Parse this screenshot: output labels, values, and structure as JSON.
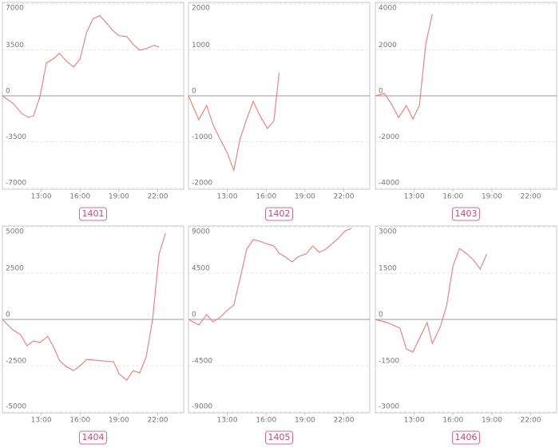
{
  "chart_data": [
    {
      "type": "line",
      "title": "1401",
      "color": "#e88585",
      "grid": true,
      "x": [
        10,
        10.85,
        11.5,
        12,
        12.4,
        12.9,
        13.4,
        14,
        14.4,
        14.9,
        15.5,
        16,
        16.5,
        17,
        17.5,
        18,
        18.5,
        19,
        19.6,
        20.1,
        20.6,
        21.1,
        21.7,
        22.1
      ],
      "values": [
        0,
        -600,
        -1340,
        -1640,
        -1520,
        -60,
        2500,
        2860,
        3230,
        2680,
        2190,
        2800,
        4810,
        5850,
        6090,
        5600,
        4990,
        4570,
        4510,
        3900,
        3470,
        3590,
        3840,
        3710
      ],
      "xlim": [
        10,
        24
      ],
      "xticks": [
        {
          "value": 13,
          "label": "13:00"
        },
        {
          "value": 16,
          "label": "16:00"
        },
        {
          "value": 19,
          "label": "19:00"
        },
        {
          "value": 22,
          "label": "22:00"
        }
      ],
      "ylim": [
        -7100,
        7100
      ],
      "yticks": [
        7000,
        3500,
        0,
        -3500,
        -7000
      ]
    },
    {
      "type": "line",
      "title": "1402",
      "color": "#e88585",
      "grid": true,
      "x": [
        10,
        10.8,
        11.4,
        11.9,
        12.4,
        13,
        13.5,
        14,
        14.5,
        15,
        15.5,
        16.1,
        16.6,
        17
      ],
      "values": [
        0,
        -520,
        -210,
        -630,
        -920,
        -1240,
        -1620,
        -920,
        -500,
        -120,
        -420,
        -710,
        -540,
        500
      ],
      "xlim": [
        10,
        24
      ],
      "xticks": [
        {
          "value": 13,
          "label": "13:00"
        },
        {
          "value": 16,
          "label": "16:00"
        },
        {
          "value": 19,
          "label": "19:00"
        },
        {
          "value": 22,
          "label": "22:00"
        }
      ],
      "ylim": [
        -2030,
        2030
      ],
      "yticks": [
        2000,
        1000,
        0,
        -1000,
        -2000
      ]
    },
    {
      "type": "line",
      "title": "1403",
      "color": "#e88585",
      "grid": true,
      "x": [
        10,
        10.7,
        11.2,
        11.8,
        12.4,
        12.9,
        13.4,
        13.9,
        14.4
      ],
      "values": [
        0,
        100,
        -310,
        -940,
        -420,
        -1010,
        -420,
        2260,
        3550
      ],
      "xlim": [
        10,
        24
      ],
      "xticks": [
        {
          "value": 13,
          "label": "13:00"
        },
        {
          "value": 16,
          "label": "16:00"
        },
        {
          "value": 19,
          "label": "19:00"
        },
        {
          "value": 22,
          "label": "22:00"
        }
      ],
      "ylim": [
        -4060,
        4060
      ],
      "yticks": [
        4000,
        2000,
        0,
        -2000,
        -4000
      ]
    },
    {
      "type": "line",
      "title": "1404",
      "color": "#e88585",
      "grid": true,
      "x": [
        10,
        10.8,
        11.4,
        11.9,
        12.4,
        12.9,
        13.5,
        14,
        14.4,
        14.9,
        15.5,
        16,
        16.5,
        18.6,
        19,
        19.6,
        20.1,
        20.6,
        21.1,
        21.6,
        22.1,
        22.6
      ],
      "values": [
        0,
        -560,
        -820,
        -1420,
        -1160,
        -1250,
        -910,
        -1550,
        -2200,
        -2540,
        -2760,
        -2500,
        -2160,
        -2290,
        -2930,
        -3280,
        -2760,
        -2890,
        -2030,
        0,
        3530,
        4650
      ],
      "xlim": [
        10,
        24
      ],
      "xticks": [
        {
          "value": 13,
          "label": "13:00"
        },
        {
          "value": 16,
          "label": "16:00"
        },
        {
          "value": 19,
          "label": "19:00"
        },
        {
          "value": 22,
          "label": "22:00"
        }
      ],
      "ylim": [
        -5040,
        5040
      ],
      "yticks": [
        5000,
        2500,
        0,
        -2500,
        -5000
      ]
    },
    {
      "type": "line",
      "title": "1405",
      "color": "#e88585",
      "grid": true,
      "x": [
        10,
        10.8,
        11.4,
        11.9,
        12.4,
        12.9,
        13.5,
        14,
        14.5,
        15,
        15.5,
        16,
        16.6,
        17,
        17.5,
        18,
        18.5,
        19.1,
        19.6,
        20.1,
        20.6,
        21.1,
        21.6,
        22.1,
        22.6
      ],
      "values": [
        0,
        -540,
        470,
        -230,
        160,
        780,
        1400,
        4040,
        6830,
        7760,
        7600,
        7370,
        7140,
        6440,
        6050,
        5590,
        6130,
        6370,
        7140,
        6520,
        6830,
        7370,
        7920,
        8610,
        8850
      ],
      "xlim": [
        10,
        24
      ],
      "xticks": [
        {
          "value": 13,
          "label": "13:00"
        },
        {
          "value": 16,
          "label": "16:00"
        },
        {
          "value": 19,
          "label": "19:00"
        },
        {
          "value": 22,
          "label": "22:00"
        }
      ],
      "ylim": [
        -9080,
        9080
      ],
      "yticks": [
        9000,
        4500,
        0,
        -4500,
        -9000
      ]
    },
    {
      "type": "line",
      "title": "1406",
      "color": "#e88585",
      "grid": true,
      "x": [
        10,
        10.9,
        11.9,
        12.4,
        12.9,
        13.4,
        14,
        14.4,
        15,
        15.5,
        16,
        16.5,
        17,
        17.6,
        18.1,
        18.6
      ],
      "values": [
        0,
        -100,
        -280,
        -960,
        -1060,
        -620,
        -100,
        -780,
        -260,
        440,
        1740,
        2300,
        2150,
        1920,
        1630,
        2120
      ],
      "xlim": [
        10,
        24
      ],
      "xticks": [
        {
          "value": 13,
          "label": "13:00"
        },
        {
          "value": 16,
          "label": "16:00"
        },
        {
          "value": 19,
          "label": "19:00"
        },
        {
          "value": 22,
          "label": "22:00"
        }
      ],
      "ylim": [
        -3030,
        3030
      ],
      "yticks": [
        3000,
        1500,
        0,
        -1500,
        -3000
      ]
    }
  ]
}
